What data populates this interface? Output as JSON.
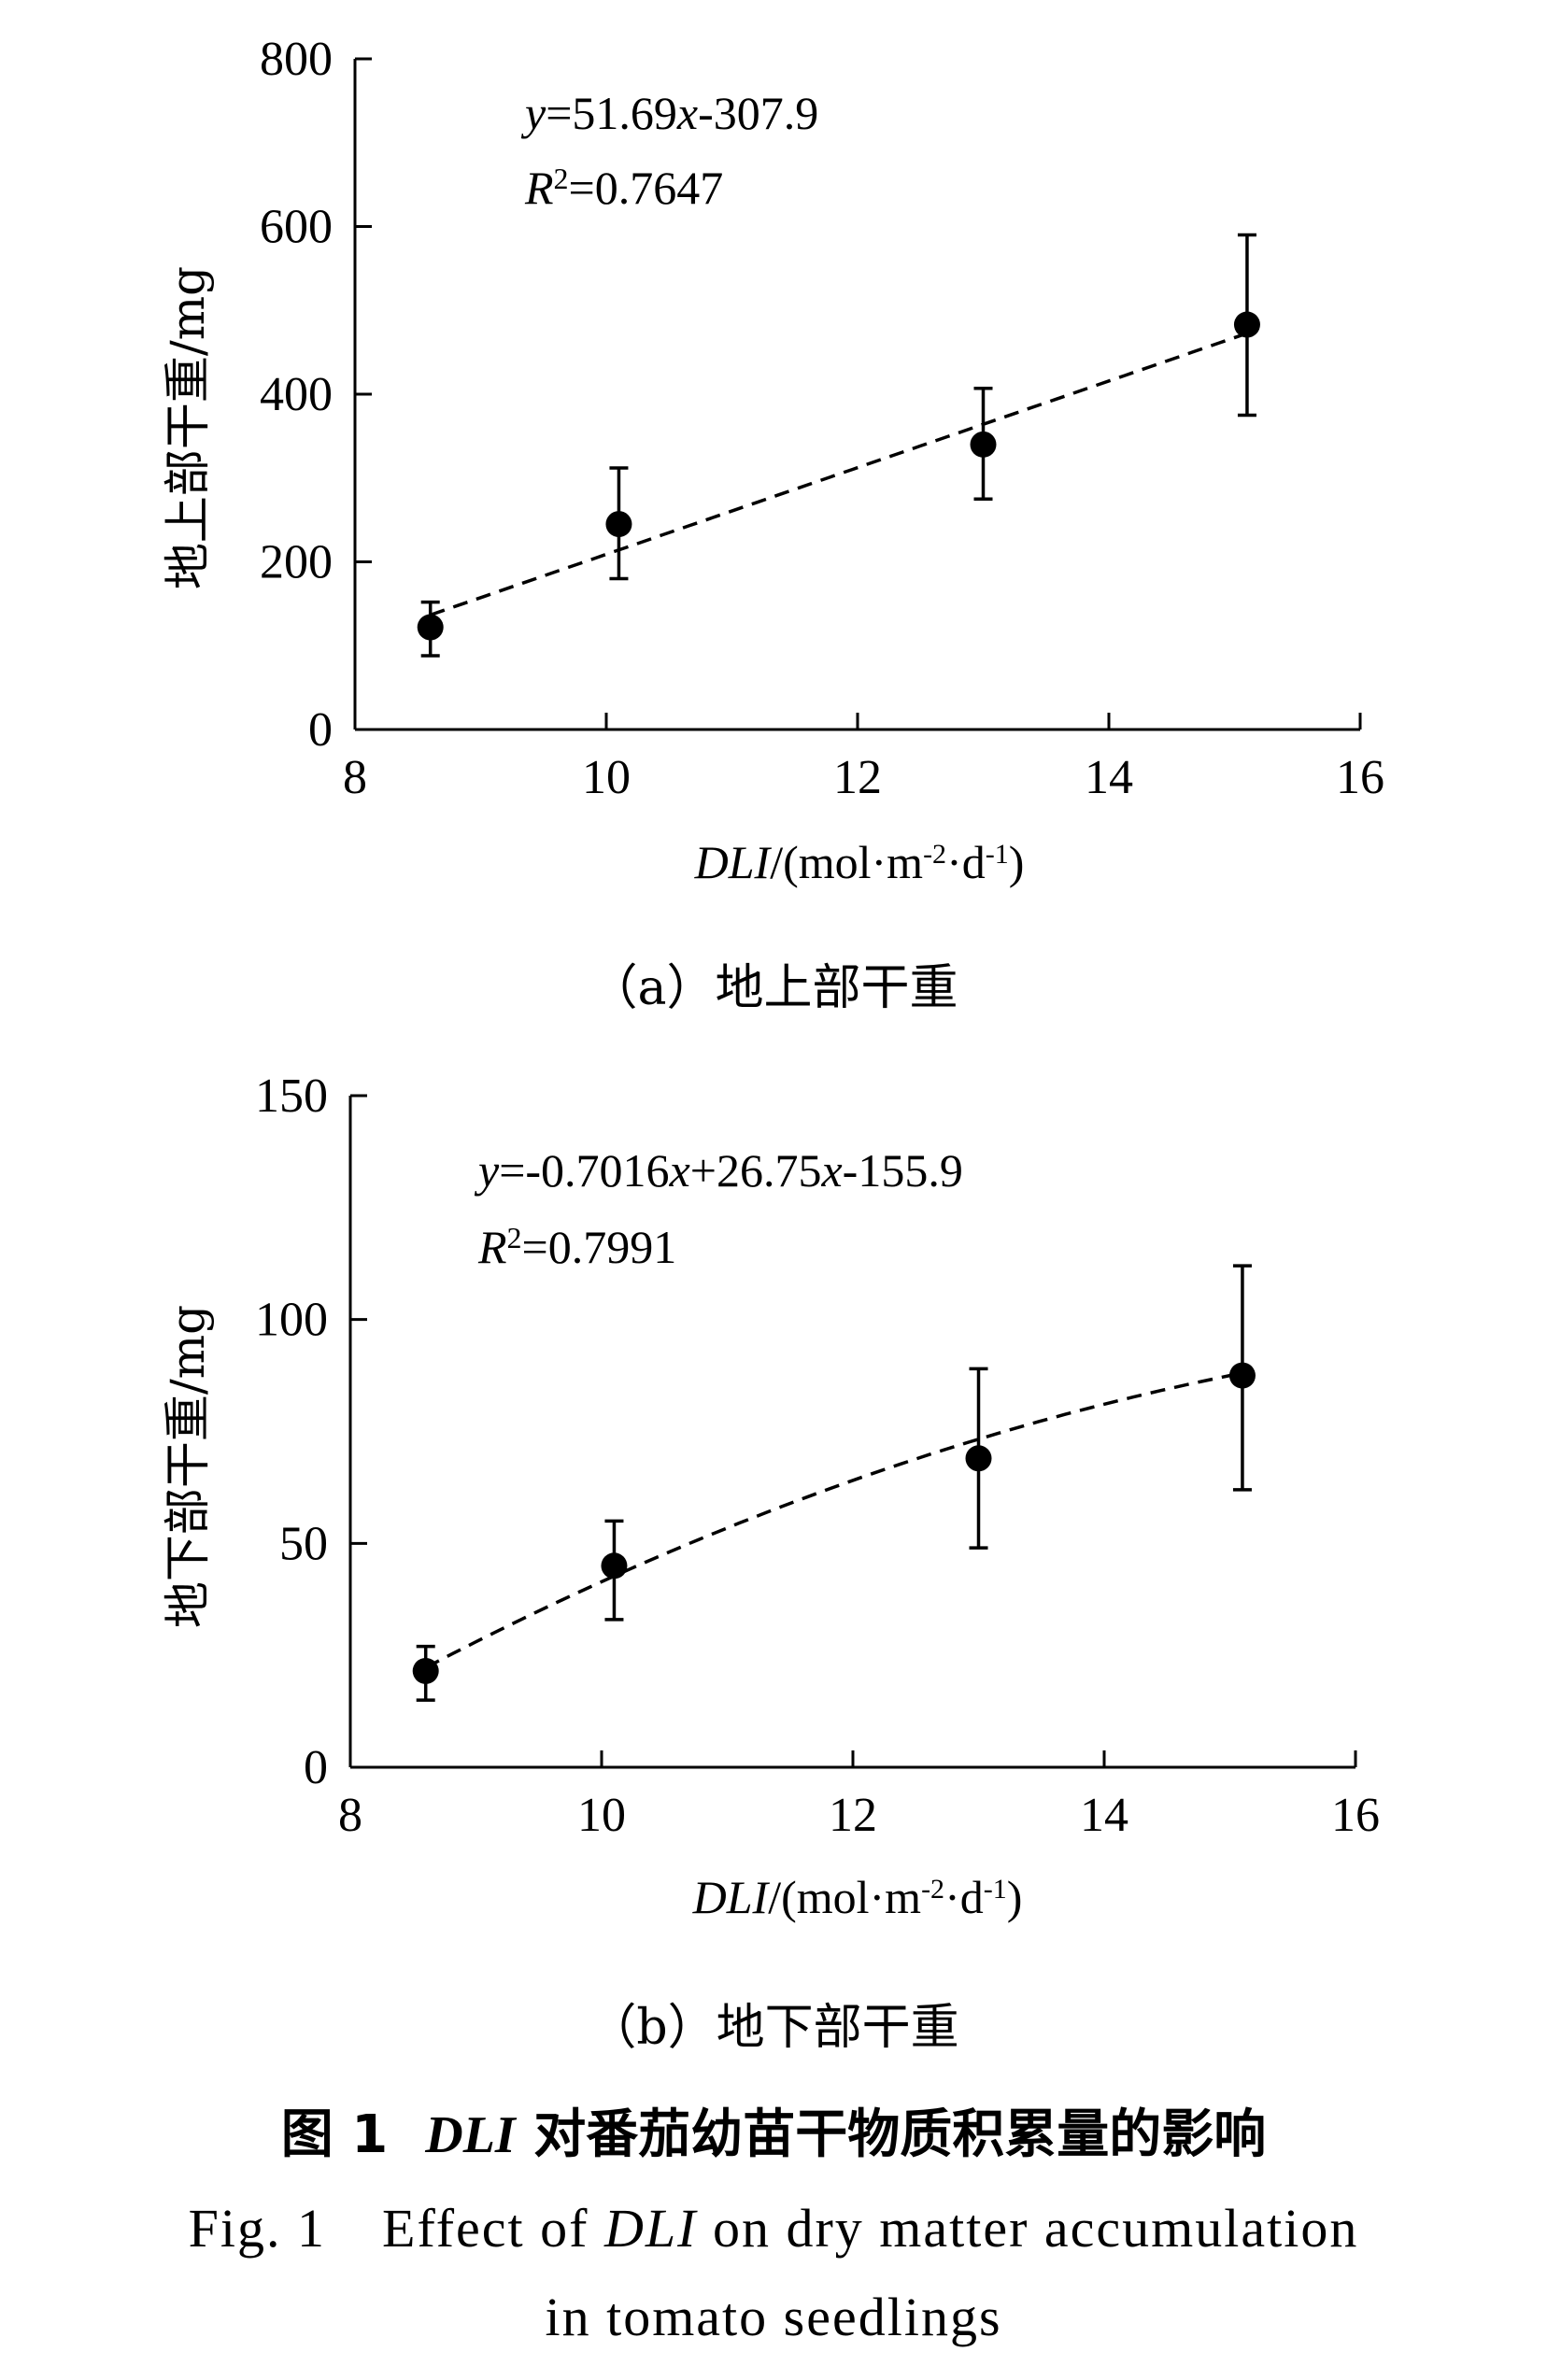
{
  "chart_data": [
    {
      "type": "scatter",
      "x": [
        8.6,
        10.1,
        13.0,
        15.1
      ],
      "y": [
        122,
        245,
        340,
        483
      ],
      "error_low": [
        88,
        180,
        275,
        375
      ],
      "error_high": [
        152,
        312,
        407,
        590
      ],
      "fit": {
        "kind": "linear",
        "coef": [
          51.69,
          -307.9
        ]
      },
      "equation": {
        "prefix": "y",
        "body": "=51.69",
        "x": "x",
        "tail": "-307.9"
      },
      "r2": {
        "r": "R",
        "sup": "2",
        "value": "=0.7647"
      },
      "xlim": [
        8,
        16
      ],
      "ylim": [
        0,
        800
      ],
      "xticks": [
        "8",
        "10",
        "12",
        "14",
        "16"
      ],
      "yticks": [
        "0",
        "200",
        "400",
        "600",
        "800"
      ],
      "ylabel": "地上部干重/mg",
      "xlabel": {
        "var": "DLI",
        "unit_a": "/(mol·m",
        "sup1": "-2",
        "unit_b": "·d",
        "sup2": "-1",
        "unit_c": ")"
      },
      "caption": "（a）地上部干重"
    },
    {
      "type": "scatter",
      "x": [
        8.6,
        10.1,
        13.0,
        15.1
      ],
      "y": [
        21.5,
        45,
        69,
        87.5
      ],
      "error_low": [
        15,
        33,
        49,
        62
      ],
      "error_high": [
        27,
        55,
        89,
        112
      ],
      "fit": {
        "kind": "quadratic",
        "coef": [
          -0.7016,
          26.75,
          -155.9
        ]
      },
      "equation": {
        "prefix": "y",
        "body": "=-0.7016",
        "x": "x",
        "tail": "+26.75",
        "x2": "x",
        "tail2": "-155.9"
      },
      "r2": {
        "r": "R",
        "sup": "2",
        "value": "=0.7991"
      },
      "xlim": [
        8,
        16
      ],
      "ylim": [
        0,
        150
      ],
      "xticks": [
        "8",
        "10",
        "12",
        "14",
        "16"
      ],
      "yticks": [
        "0",
        "50",
        "100",
        "150"
      ],
      "ylabel": "地下部干重/mg",
      "xlabel": {
        "var": "DLI",
        "unit_a": "/(mol·m",
        "sup1": "-2",
        "unit_b": "·d",
        "sup2": "-1",
        "unit_c": ")"
      },
      "caption": "（b）地下部干重"
    }
  ],
  "figure": {
    "num": "图 1",
    "title_var": "DLI",
    "title_rest": " 对番茄幼苗干物质积累量的影响",
    "en_prefix": "Fig. 1",
    "en_a": "Effect of ",
    "en_var": "DLI",
    "en_b": " on dry matter accumulation",
    "en_line2": "in tomato seedlings"
  }
}
